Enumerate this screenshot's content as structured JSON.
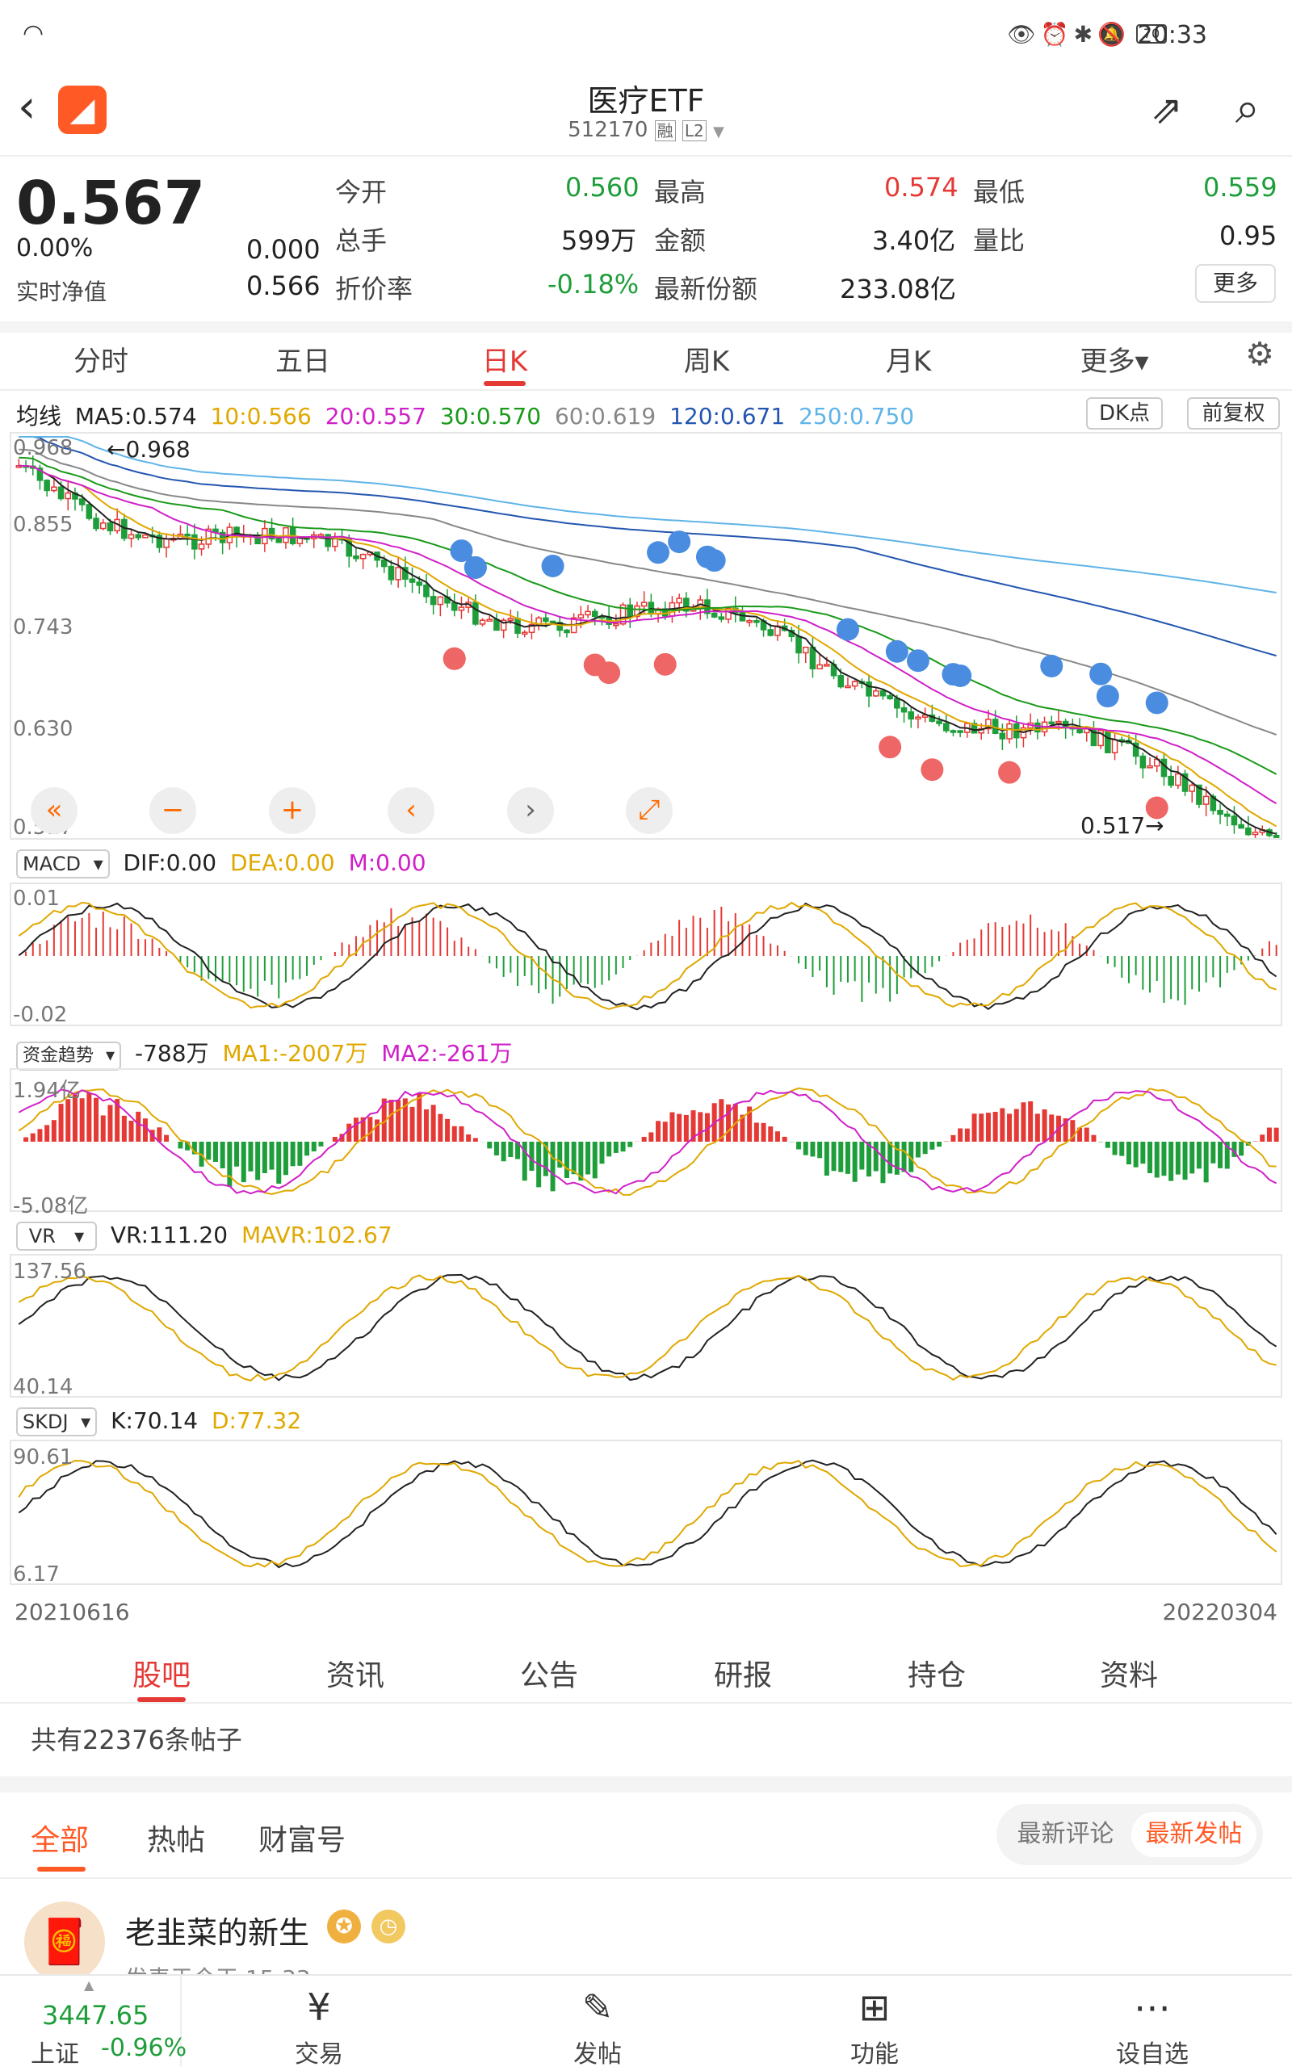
{
  "status_bar": {
    "time": "20:33",
    "battery": "70"
  },
  "header": {
    "title": "医疗ETF",
    "code": "512170",
    "tag_rong": "融",
    "tag_l2": "L2"
  },
  "quote": {
    "price": "0.567",
    "change_pct": "0.00%",
    "change_abs": "0.000",
    "nav_label": "实时净值",
    "nav_value": "0.566",
    "open_label": "今开",
    "open_value": "0.560",
    "high_label": "最高",
    "high_value": "0.574",
    "low_label": "最低",
    "low_value": "0.559",
    "vol_label": "总手",
    "vol_value": "599万",
    "amount_label": "金额",
    "amount_value": "3.40亿",
    "ratio_label": "量比",
    "ratio_value": "0.95",
    "discount_label": "折价率",
    "discount_value": "-0.18%",
    "shares_label": "最新份额",
    "shares_value": "233.08亿",
    "more_label": "更多"
  },
  "kline_tabs": [
    "分时",
    "五日",
    "日K",
    "周K",
    "月K",
    "更多▾"
  ],
  "ma_line": {
    "label": "均线",
    "ma5": "MA5:0.574",
    "ma10": "10:0.566",
    "ma20": "20:0.557",
    "ma30": "30:0.570",
    "ma60": "60:0.619",
    "ma120": "120:0.671",
    "ma250": "250:0.750",
    "dk_label": "DK点",
    "fq_label": "前复权"
  },
  "colors": {
    "ma5": "#222222",
    "ma10": "#e0a800",
    "ma20": "#d020c8",
    "ma30": "#1a9a1a",
    "ma60": "#888888",
    "ma120": "#2456b0",
    "ma250": "#5fb4e8",
    "up": "#e53935",
    "down": "#1e9e3a",
    "accent": "#ff5a26"
  },
  "main_chart": {
    "y_ticks": [
      "0.968",
      "0.855",
      "0.743",
      "0.630",
      "0.517"
    ],
    "max_label": "0.968",
    "min_label": "0.517"
  },
  "macd": {
    "name": "MACD",
    "dif": "DIF:0.00",
    "dea": "DEA:0.00",
    "m": "M:0.00",
    "y_top": "0.01",
    "y_bottom": "-0.02"
  },
  "fund": {
    "name": "资金趋势",
    "value": "-788万",
    "ma1": "MA1:-2007万",
    "ma2": "MA2:-261万",
    "y_top": "1.94亿",
    "y_bottom": "-5.08亿"
  },
  "vr": {
    "name": "VR",
    "vr": "VR:111.20",
    "mavr": "MAVR:102.67",
    "y_top": "137.56",
    "y_bottom": "40.14"
  },
  "skdj": {
    "name": "SKDJ",
    "k": "K:70.14",
    "d": "D:77.32",
    "y_top": "90.61",
    "y_bottom": "6.17"
  },
  "date_range": {
    "start": "20210616",
    "end": "20220304"
  },
  "bottom_tabs": [
    "股吧",
    "资讯",
    "公告",
    "研报",
    "持仓",
    "资料"
  ],
  "forum": {
    "count_text": "共有22376条帖子",
    "filters": [
      "全部",
      "热帖",
      "财富号"
    ],
    "sort": [
      "最新评论",
      "最新发帖"
    ]
  },
  "post": {
    "author": "老韭菜的新生",
    "time": "发表于今天 15:33"
  },
  "bottom_bar": {
    "index_value": "3447.65",
    "index_name": "上证",
    "index_pct": "-0.96%",
    "items": [
      "交易",
      "发帖",
      "功能",
      "设自选"
    ]
  }
}
